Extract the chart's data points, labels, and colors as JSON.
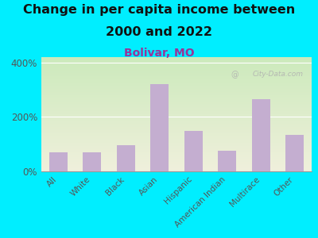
{
  "title_line1": "Change in per capita income between",
  "title_line2": "2000 and 2022",
  "subtitle": "Bolivar, MO",
  "categories": [
    "All",
    "White",
    "Black",
    "Asian",
    "Hispanic",
    "American Indian",
    "Multirace",
    "Other"
  ],
  "values": [
    70,
    70,
    95,
    320,
    150,
    75,
    265,
    135
  ],
  "bar_color": "#c4aed0",
  "background_outer": "#00eeff",
  "background_plot_top": "#cceabc",
  "background_plot_bottom": "#f0f0dc",
  "title_fontsize": 11.5,
  "subtitle_fontsize": 10,
  "subtitle_color": "#993399",
  "ylabel_ticks": [
    "0%",
    "200%",
    "400%"
  ],
  "yticks": [
    0,
    200,
    400
  ],
  "ylim": [
    0,
    420
  ],
  "watermark": "City-Data.com",
  "tick_label_color": "#555555",
  "watermark_color": "#b0b0b0"
}
